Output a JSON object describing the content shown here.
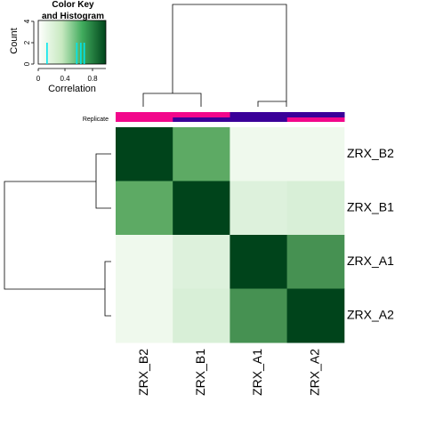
{
  "chart_data": {
    "type": "heatmap",
    "rows": [
      "ZRX_B2",
      "ZRX_B1",
      "ZRX_A1",
      "ZRX_A2"
    ],
    "columns": [
      "ZRX_B2",
      "ZRX_B1",
      "ZRX_A1",
      "ZRX_A2"
    ],
    "values": [
      [
        1.0,
        0.6,
        0.03,
        0.03
      ],
      [
        0.6,
        1.0,
        0.1,
        0.12
      ],
      [
        0.03,
        0.1,
        1.0,
        0.7
      ],
      [
        0.03,
        0.12,
        0.7,
        1.0
      ]
    ],
    "color_scale": {
      "min": 0,
      "max": 1,
      "low_color": "#f7fcf5",
      "mid_color": "#74c476",
      "high_color": "#00441b"
    },
    "annotation": {
      "label": "Replicate",
      "top_colors": [
        "#f2078b",
        "#f2078b",
        "#3a0099",
        "#3a0099"
      ],
      "bottom_colors": [
        "#f2078b",
        "#3a0099",
        "#3a0099",
        "#f2078b"
      ]
    },
    "color_key": {
      "title_line1": "Color Key",
      "title_line2": "and Histogram",
      "xlabel": "Correlation",
      "ylabel": "Count",
      "x_ticks": [
        "0",
        "0.4",
        "0.8"
      ],
      "y_ticks": [
        "0",
        "2",
        "4"
      ],
      "histogram_values": [
        0.13,
        0.57,
        0.63,
        0.68
      ]
    },
    "dendrogram": {
      "clusters": [
        [
          "ZRX_B2",
          "ZRX_B1"
        ],
        [
          "ZRX_A1",
          "ZRX_A2"
        ]
      ]
    }
  }
}
